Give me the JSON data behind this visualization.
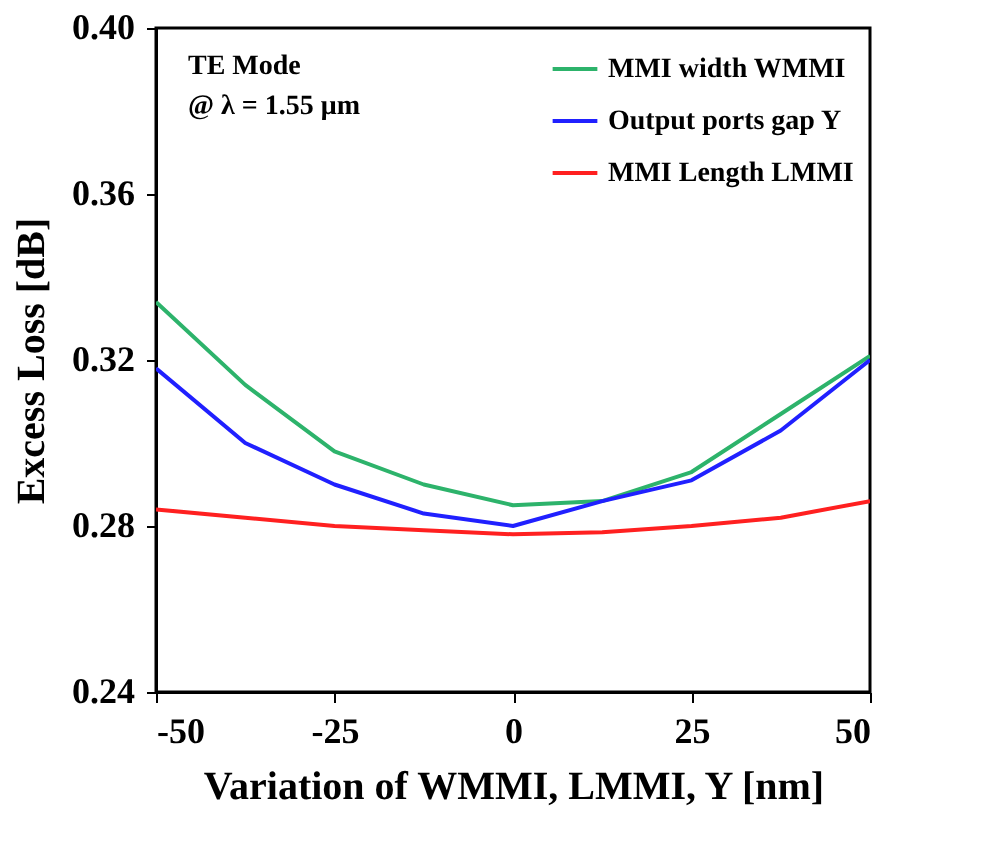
{
  "chart_data": {
    "type": "line",
    "xlabel": "Variation of WMMI, LMMI, Y [nm]",
    "ylabel": "Excess Loss [dB]",
    "x": [
      -50,
      -37.5,
      -25,
      -12.5,
      0,
      12.5,
      25,
      37.5,
      50
    ],
    "series": [
      {
        "name": "MMI width WMMI",
        "color": "#2db36b",
        "values": [
          0.334,
          0.314,
          0.298,
          0.29,
          0.285,
          0.286,
          0.293,
          0.307,
          0.321
        ]
      },
      {
        "name": "Output ports gap Y",
        "color": "#2020ff",
        "values": [
          0.318,
          0.3,
          0.29,
          0.283,
          0.28,
          0.286,
          0.291,
          0.303,
          0.32
        ]
      },
      {
        "name": "MMI Length LMMI",
        "color": "#ff2020",
        "values": [
          0.284,
          0.282,
          0.28,
          0.279,
          0.278,
          0.2785,
          0.28,
          0.282,
          0.286
        ]
      }
    ],
    "xlim": [
      -50,
      50
    ],
    "xticks": [
      -50,
      -25,
      0,
      25,
      50
    ],
    "ylim": [
      0.24,
      0.4
    ],
    "yticks": [
      {
        "value": 0.24,
        "label": "0.24"
      },
      {
        "value": 0.28,
        "label": "0.28"
      },
      {
        "value": 0.32,
        "label": "0.32"
      },
      {
        "value": 0.36,
        "label": "0.36"
      },
      {
        "value": 0.4,
        "label": "0.40"
      }
    ],
    "annotations": [
      "TE Mode",
      "@ λ = 1.55 μm"
    ],
    "legend": "top right",
    "grid": false,
    "marker": "none",
    "line_style": "solid"
  }
}
